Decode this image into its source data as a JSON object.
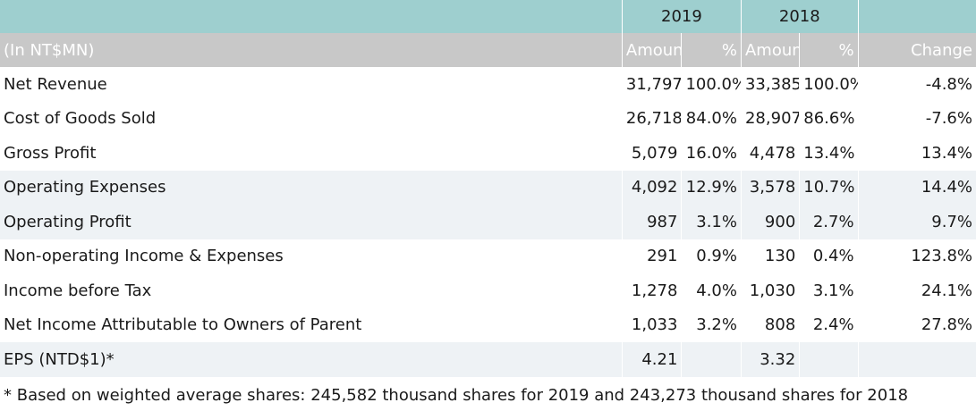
{
  "years": {
    "y2019": "2019",
    "y2018": "2018"
  },
  "header": {
    "unit": "(In NT$MN)",
    "amount_2019": "Amount",
    "pct_2019": "%",
    "amount_2018": "Amount",
    "pct_2018": "%",
    "change": "Change"
  },
  "rows": [
    {
      "label": "Net Revenue",
      "amt2019": "31,797",
      "pct2019": "100.0%",
      "amt2018": "33,385",
      "pct2018": "100.0%",
      "change": "-4.8%"
    },
    {
      "label": "Cost of Goods Sold",
      "amt2019": "26,718",
      "pct2019": "84.0%",
      "amt2018": "28,907",
      "pct2018": "86.6%",
      "change": "-7.6%"
    },
    {
      "label": "Gross Profit",
      "amt2019": "5,079",
      "pct2019": "16.0%",
      "amt2018": "4,478",
      "pct2018": "13.4%",
      "change": "13.4%"
    },
    {
      "label": "Operating Expenses",
      "amt2019": "4,092",
      "pct2019": "12.9%",
      "amt2018": "3,578",
      "pct2018": "10.7%",
      "change": "14.4%"
    },
    {
      "label": "Operating Profit",
      "amt2019": "987",
      "pct2019": "3.1%",
      "amt2018": "900",
      "pct2018": "2.7%",
      "change": "9.7%"
    },
    {
      "label": "Non-operating Income & Expenses",
      "amt2019": "291",
      "pct2019": "0.9%",
      "amt2018": "130",
      "pct2018": "0.4%",
      "change": "123.8%"
    },
    {
      "label": "Income before Tax",
      "amt2019": "1,278",
      "pct2019": "4.0%",
      "amt2018": "1,030",
      "pct2018": "3.1%",
      "change": "24.1%"
    },
    {
      "label": "Net Income Attributable to Owners of Parent",
      "amt2019": "1,033",
      "pct2019": "3.2%",
      "amt2018": "808",
      "pct2018": "2.4%",
      "change": "27.8%"
    },
    {
      "label": "EPS (NTD$1)*",
      "amt2019": "4.21",
      "pct2019": "",
      "amt2018": "3.32",
      "pct2018": "",
      "change": ""
    }
  ],
  "footnote": "* Based on weighted average shares: 245,582 thousand shares for 2019 and 243,273 thousand shares for 2018",
  "colors": {
    "year_header_bg": "#9ecfcf",
    "column_header_bg": "#c8c8c8",
    "row_shade_bg": "#eef2f5"
  }
}
